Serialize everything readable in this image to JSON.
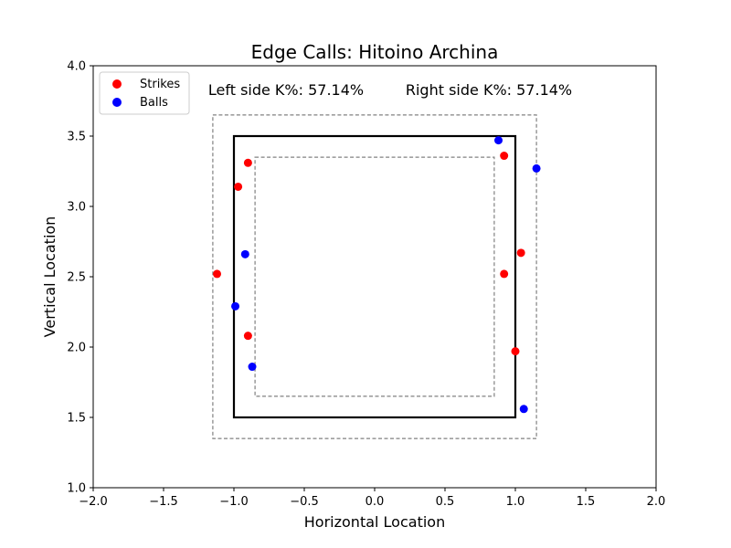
{
  "chart_data": {
    "type": "scatter",
    "title": "Edge Calls: Hitoino Archina",
    "xlabel": "Horizontal Location",
    "ylabel": "Vertical Location",
    "xlim": [
      -2.0,
      2.0
    ],
    "ylim": [
      1.0,
      4.0
    ],
    "xticks": [
      -2.0,
      -1.5,
      -1.0,
      -0.5,
      0.0,
      0.5,
      1.0,
      1.5,
      2.0
    ],
    "yticks": [
      1.0,
      1.5,
      2.0,
      2.5,
      3.0,
      3.5,
      4.0
    ],
    "xtick_labels": [
      "−2.0",
      "−1.5",
      "−1.0",
      "−0.5",
      "0.0",
      "0.5",
      "1.0",
      "1.5",
      "2.0"
    ],
    "ytick_labels": [
      "1.0",
      "1.5",
      "2.0",
      "2.5",
      "3.0",
      "3.5",
      "4.0"
    ],
    "grid": false,
    "legend_position": "top-left",
    "annotations": {
      "left": "Left side K%: 57.14%",
      "right": "Right side K%: 57.14%"
    },
    "zones": {
      "strike_zone": {
        "x": [
          -1.0,
          1.0
        ],
        "y": [
          1.5,
          3.5
        ],
        "style": "solid"
      },
      "outer_edge": {
        "x": [
          -1.15,
          1.15
        ],
        "y": [
          1.35,
          3.65
        ],
        "style": "dashed"
      },
      "inner_edge": {
        "x": [
          -0.85,
          0.85
        ],
        "y": [
          1.65,
          3.35
        ],
        "style": "dashed"
      }
    },
    "series": [
      {
        "name": "Strikes",
        "color": "#ff0000",
        "points": [
          {
            "x": -0.9,
            "y": 3.31
          },
          {
            "x": -0.97,
            "y": 3.14
          },
          {
            "x": -1.12,
            "y": 2.52
          },
          {
            "x": -0.9,
            "y": 2.08
          },
          {
            "x": 0.92,
            "y": 3.36
          },
          {
            "x": 1.04,
            "y": 2.67
          },
          {
            "x": 0.92,
            "y": 2.52
          },
          {
            "x": 1.0,
            "y": 1.97
          }
        ]
      },
      {
        "name": "Balls",
        "color": "#0000ff",
        "points": [
          {
            "x": 0.88,
            "y": 3.47
          },
          {
            "x": 1.15,
            "y": 3.27
          },
          {
            "x": -0.92,
            "y": 2.66
          },
          {
            "x": -0.99,
            "y": 2.29
          },
          {
            "x": -0.87,
            "y": 1.86
          },
          {
            "x": 1.06,
            "y": 1.56
          }
        ]
      }
    ]
  }
}
